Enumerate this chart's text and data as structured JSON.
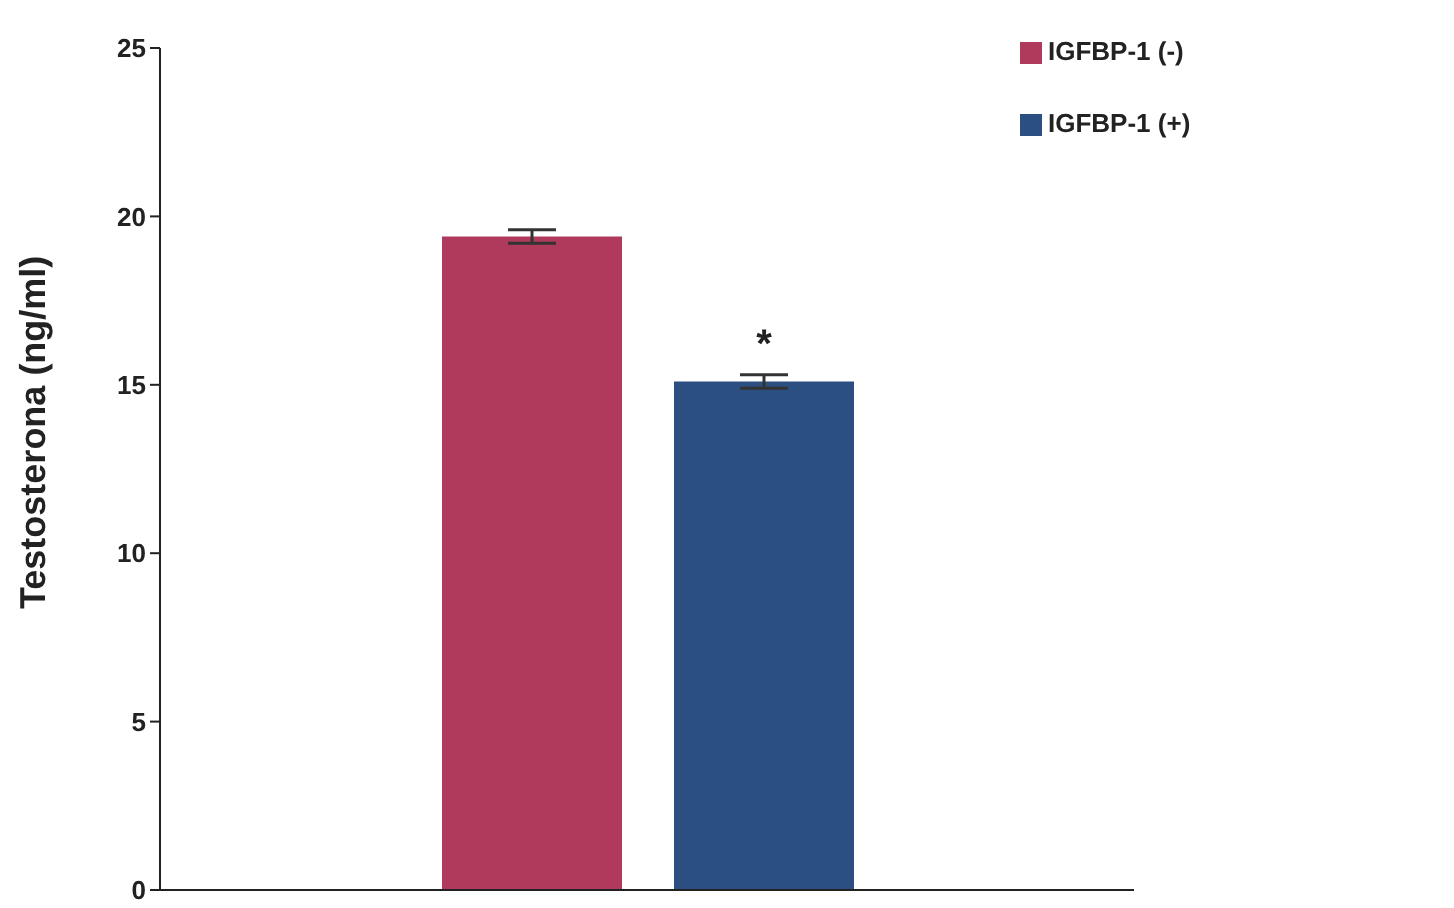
{
  "chart_data": {
    "type": "bar",
    "ylabel": "Testosterona (ng/ml)",
    "categories": [
      null
    ],
    "series": [
      {
        "name": "IGFBP-1 (-)",
        "color": "#b03a5c",
        "values": [
          19.4
        ],
        "errors": [
          0.2
        ]
      },
      {
        "name": "IGFBP-1 (+)",
        "color": "#2b4f80",
        "values": [
          15.1
        ],
        "errors": [
          0.2
        ]
      }
    ],
    "ylim": [
      0,
      25
    ],
    "yticks": [
      0,
      5,
      10,
      15,
      20,
      25
    ],
    "legend": "top right",
    "annotations": [
      "*"
    ]
  }
}
